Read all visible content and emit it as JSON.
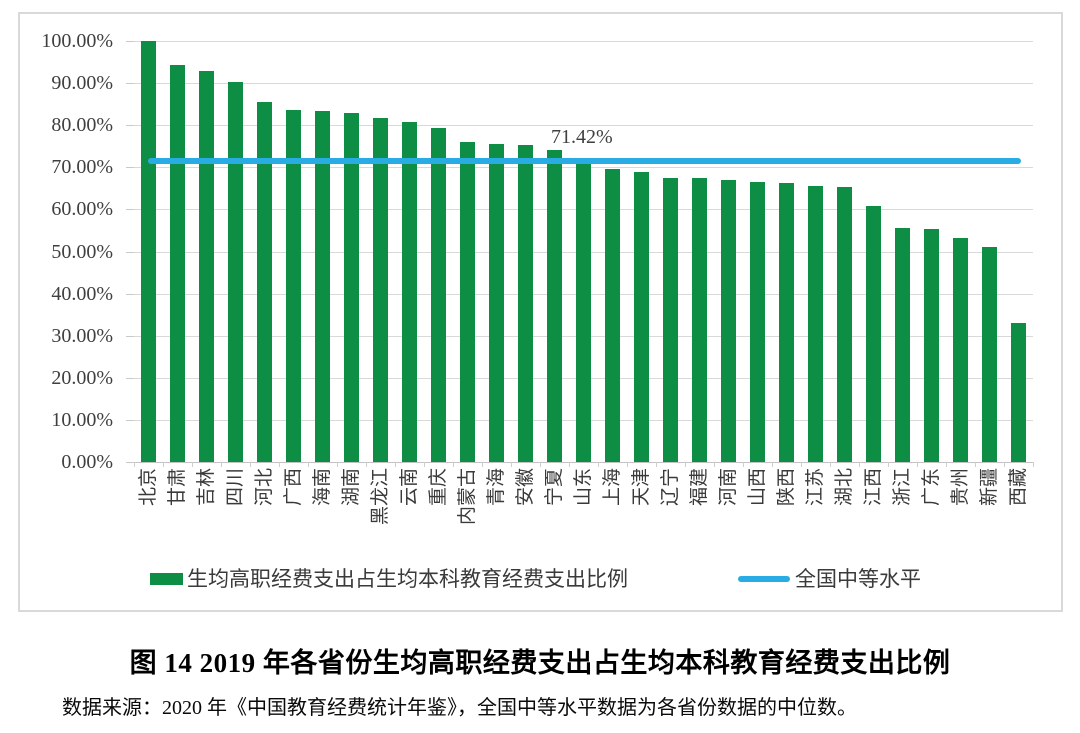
{
  "chart_data": {
    "type": "bar",
    "title": "图 14  2019 年各省份生均高职经费支出占生均本科教育经费支出比例",
    "source_note": "数据来源：2020 年《中国教育经费统计年鉴》，全国中等水平数据为各省份数据的中位数。",
    "categories": [
      "北京",
      "甘肃",
      "吉林",
      "四川",
      "河北",
      "广西",
      "海南",
      "湖南",
      "黑龙江",
      "云南",
      "重庆",
      "内蒙古",
      "青海",
      "安徽",
      "宁夏",
      "山东",
      "上海",
      "天津",
      "辽宁",
      "福建",
      "河南",
      "山西",
      "陕西",
      "江苏",
      "湖北",
      "江西",
      "浙江",
      "广东",
      "贵州",
      "新疆",
      "西藏"
    ],
    "values": [
      100.0,
      94.3,
      92.8,
      90.2,
      85.6,
      83.6,
      83.3,
      83.0,
      81.8,
      80.8,
      79.4,
      76.0,
      75.5,
      75.3,
      74.2,
      71.42,
      69.7,
      68.9,
      67.5,
      67.4,
      66.9,
      66.4,
      66.2,
      65.5,
      65.3,
      60.8,
      55.6,
      55.3,
      53.1,
      51.1,
      33.0
    ],
    "series_name": "生均高职经费支出占生均本科教育经费支出比例",
    "reference_line": {
      "label": "全国中等水平",
      "value": 71.42,
      "annotation": "71.42%"
    },
    "ylim": [
      0,
      100
    ],
    "ytick_step": 10,
    "ytick_labels": [
      "0.00%",
      "10.00%",
      "20.00%",
      "30.00%",
      "40.00%",
      "50.00%",
      "60.00%",
      "70.00%",
      "80.00%",
      "90.00%",
      "100.00%"
    ],
    "grid": true,
    "legend_position": "bottom",
    "legend": [
      {
        "type": "bar",
        "label": "生均高职经费支出占生均本科教育经费支出比例"
      },
      {
        "type": "line",
        "label": "全国中等水平"
      }
    ],
    "colors": {
      "bar": "#0e8e44",
      "reference_line": "#29ace3",
      "grid": "#d9d9d9",
      "axis_text": "#3f3f3f",
      "title_text": "#000000"
    }
  }
}
